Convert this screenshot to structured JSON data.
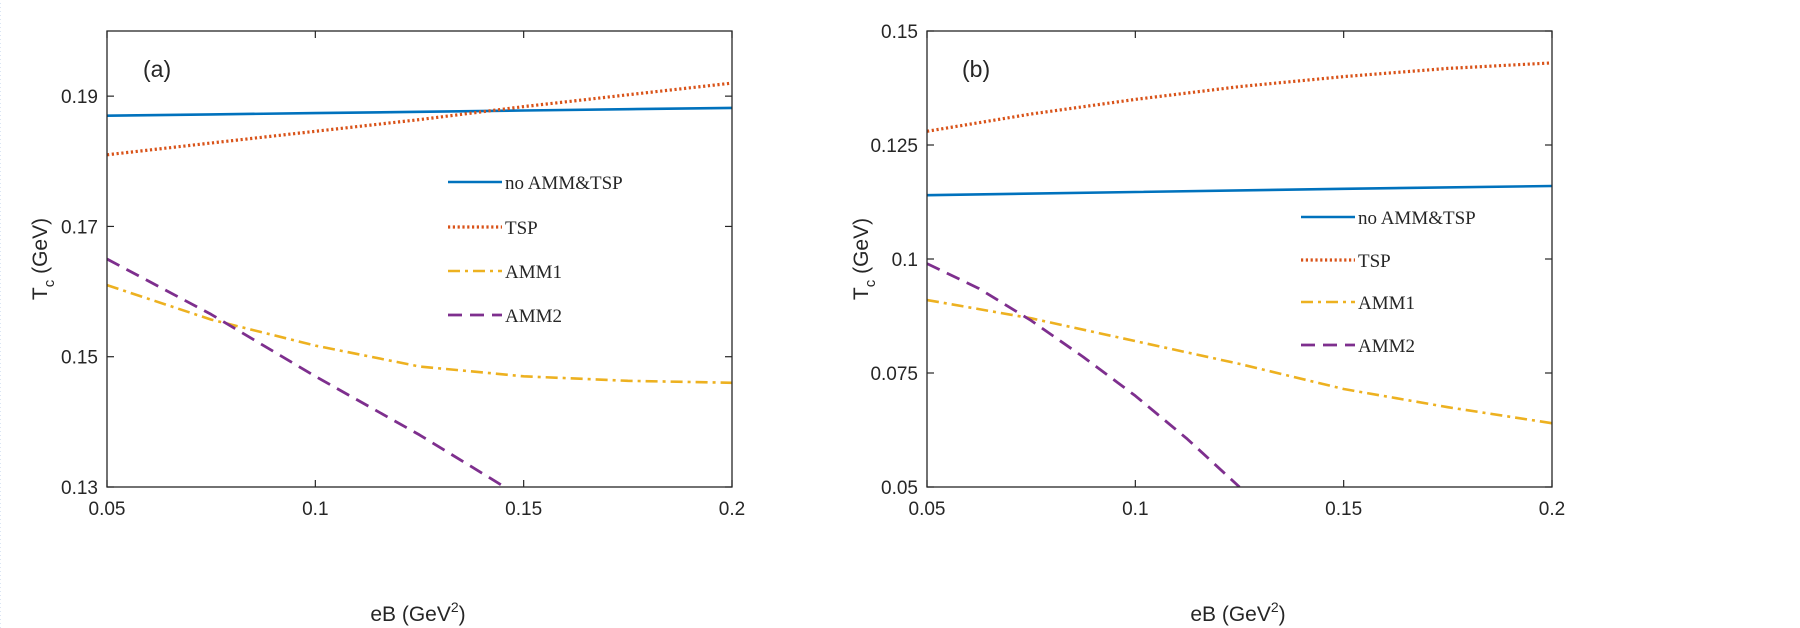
{
  "chart_data": [
    {
      "type": "line",
      "panel_label": "(a)",
      "xlabel": "eB (GeV",
      "xlabel_sup": "2",
      "xlabel_end": ")",
      "ylabel": "T",
      "ylabel_sub": "c",
      "ylabel_end": " (GeV)",
      "xlim": [
        0.05,
        0.2
      ],
      "ylim": [
        0.13,
        0.2
      ],
      "xticks": [
        0.05,
        0.1,
        0.15,
        0.2
      ],
      "xtick_labels": [
        "0.05",
        "0.1",
        "0.15",
        "0.2"
      ],
      "yticks": [
        0.13,
        0.15,
        0.17,
        0.19
      ],
      "ytick_labels": [
        "0.13",
        "0.15",
        "0.17",
        "0.19"
      ],
      "grid": false,
      "legend_position": "right",
      "series": [
        {
          "name": "no AMM&TSP",
          "color": "#0072BD",
          "style": "solid",
          "x": [
            0.05,
            0.075,
            0.1,
            0.125,
            0.15,
            0.175,
            0.2
          ],
          "y": [
            0.187,
            0.1872,
            0.1874,
            0.1876,
            0.1878,
            0.188,
            0.1882
          ]
        },
        {
          "name": "TSP",
          "color": "#D95319",
          "style": "dotted",
          "x": [
            0.05,
            0.075,
            0.1,
            0.125,
            0.15,
            0.175,
            0.2
          ],
          "y": [
            0.181,
            0.1828,
            0.1846,
            0.1864,
            0.1884,
            0.1902,
            0.192
          ]
        },
        {
          "name": "AMM1",
          "color": "#EDB120",
          "style": "dashdot",
          "x": [
            0.05,
            0.075,
            0.1,
            0.125,
            0.15,
            0.175,
            0.2
          ],
          "y": [
            0.161,
            0.1557,
            0.1517,
            0.1485,
            0.147,
            0.1463,
            0.146
          ]
        },
        {
          "name": "AMM2",
          "color": "#7E2F8E",
          "style": "dashed",
          "x": [
            0.05,
            0.075,
            0.1,
            0.125,
            0.148
          ],
          "y": [
            0.165,
            0.1565,
            0.147,
            0.138,
            0.129
          ]
        }
      ]
    },
    {
      "type": "line",
      "panel_label": "(b)",
      "xlabel": "eB (GeV",
      "xlabel_sup": "2",
      "xlabel_end": ")",
      "ylabel": "T",
      "ylabel_sub": "c",
      "ylabel_end": " (GeV)",
      "xlim": [
        0.05,
        0.2
      ],
      "ylim": [
        0.05,
        0.15
      ],
      "xticks": [
        0.05,
        0.1,
        0.15,
        0.2
      ],
      "xtick_labels": [
        "0.05",
        "0.1",
        "0.15",
        "0.2"
      ],
      "yticks": [
        0.05,
        0.075,
        0.1,
        0.125,
        0.15
      ],
      "ytick_labels": [
        "0.05",
        "0.075",
        "0.1",
        "0.125",
        "0.15"
      ],
      "grid": false,
      "legend_position": "right",
      "series": [
        {
          "name": "no AMM&TSP",
          "color": "#0072BD",
          "style": "solid",
          "x": [
            0.05,
            0.1,
            0.15,
            0.2
          ],
          "y": [
            0.114,
            0.1147,
            0.1154,
            0.116
          ]
        },
        {
          "name": "TSP",
          "color": "#D95319",
          "style": "dotted",
          "x": [
            0.05,
            0.075,
            0.1,
            0.125,
            0.15,
            0.175,
            0.2
          ],
          "y": [
            0.128,
            0.1318,
            0.135,
            0.1378,
            0.14,
            0.1418,
            0.143
          ]
        },
        {
          "name": "AMM1",
          "color": "#EDB120",
          "style": "dashdot",
          "x": [
            0.05,
            0.075,
            0.1,
            0.125,
            0.15,
            0.175,
            0.2
          ],
          "y": [
            0.091,
            0.087,
            0.082,
            0.077,
            0.0715,
            0.0675,
            0.064
          ]
        },
        {
          "name": "AMM2",
          "color": "#7E2F8E",
          "style": "dashed",
          "x": [
            0.05,
            0.0625,
            0.075,
            0.0875,
            0.1,
            0.1125,
            0.125
          ],
          "y": [
            0.099,
            0.0935,
            0.0865,
            0.0785,
            0.07,
            0.0605,
            0.05
          ]
        }
      ]
    }
  ]
}
